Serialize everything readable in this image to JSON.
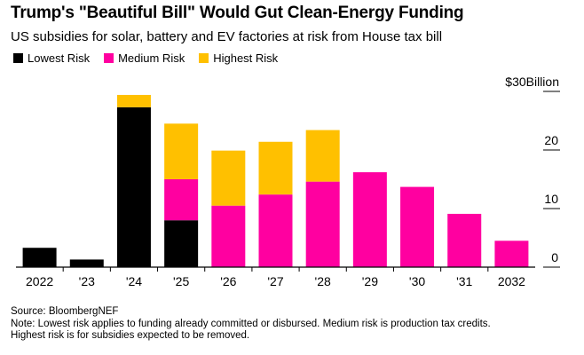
{
  "header": {
    "title": "Trump's \"Beautiful Bill\" Would Gut Clean-Energy Funding",
    "subtitle": "US subsidies for solar, battery and EV factories at risk from House tax bill"
  },
  "legend": [
    {
      "label": "Lowest Risk",
      "color": "#000000"
    },
    {
      "label": "Medium Risk",
      "color": "#ff00a0"
    },
    {
      "label": "Highest Risk",
      "color": "#ffc000"
    }
  ],
  "footer": {
    "source": "Source: BloombergNEF",
    "note_line1": "Note: Lowest risk applies to funding already committed or disbursed. Medium risk is production tax credits.",
    "note_line2": "Highest risk is for subsidies expected to be removed."
  },
  "chart_data": {
    "type": "bar",
    "stacked": true,
    "categories": [
      "2022",
      "'23",
      "'24",
      "'25",
      "'26",
      "'27",
      "'28",
      "'29",
      "'30",
      "'31",
      "2032"
    ],
    "series": [
      {
        "name": "Lowest Risk",
        "color": "#000000",
        "values": [
          3.3,
          1.3,
          27.3,
          8.0,
          0,
          0,
          0,
          0,
          0,
          0,
          0
        ]
      },
      {
        "name": "Medium Risk",
        "color": "#ff00a0",
        "values": [
          0,
          0,
          0,
          7.0,
          10.5,
          12.4,
          14.6,
          16.2,
          13.7,
          9.1,
          4.5
        ]
      },
      {
        "name": "Highest Risk",
        "color": "#ffc000",
        "values": [
          0,
          0,
          2.1,
          9.5,
          9.4,
          9.0,
          8.8,
          0,
          0,
          0,
          0
        ]
      }
    ],
    "ylim": [
      0,
      30
    ],
    "yticks": [
      {
        "value": 0,
        "label": "0"
      },
      {
        "value": 10,
        "label": "10"
      },
      {
        "value": 20,
        "label": "20"
      },
      {
        "value": 30,
        "label": "$30Billion"
      }
    ],
    "ylabel": "",
    "xlabel": "",
    "grid": false,
    "legend_position": "top-left"
  }
}
